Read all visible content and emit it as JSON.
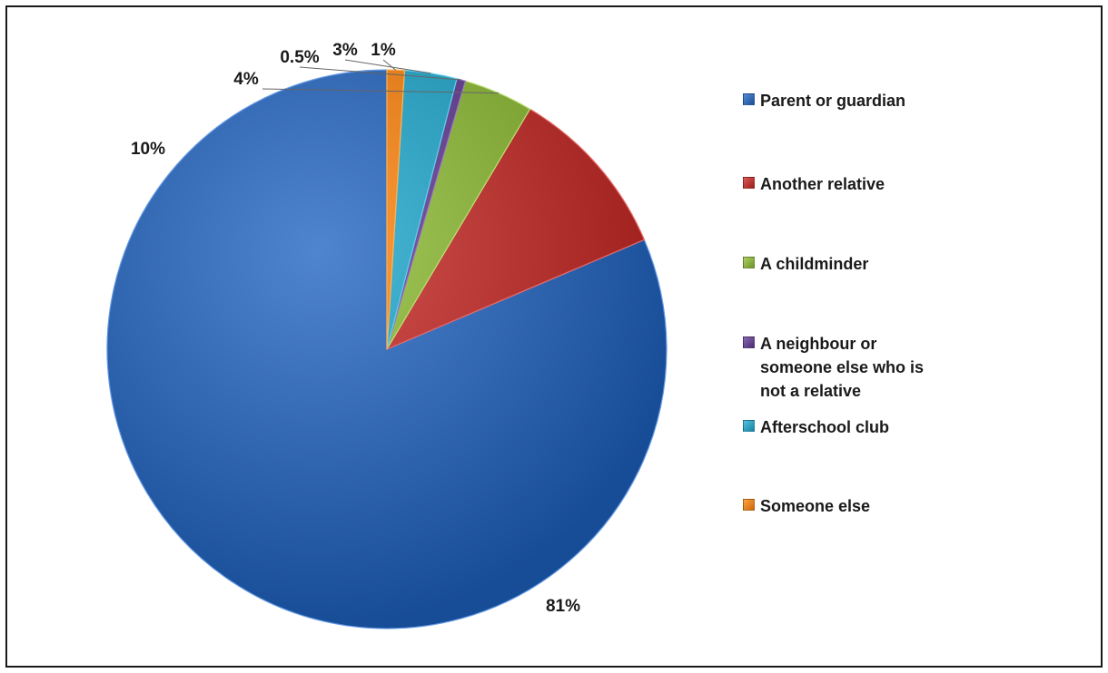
{
  "chart_data": {
    "type": "pie",
    "categories": [
      "Parent or guardian",
      "Another relative",
      "A childminder",
      "A neighbour or someone else who is not a relative",
      "Afterschool club",
      "Someone else"
    ],
    "values": [
      81,
      10,
      4,
      0.5,
      3,
      1
    ],
    "data_labels": [
      "81%",
      "10%",
      "4%",
      "0.5%",
      "3%",
      "1%"
    ],
    "colors": [
      "#3d72bd",
      "#c0413e",
      "#93b84a",
      "#6f4f97",
      "#39a8c6",
      "#ee8a2a"
    ],
    "start_angle_deg": 0,
    "direction": "counterclockwise",
    "legend_position": "right"
  }
}
